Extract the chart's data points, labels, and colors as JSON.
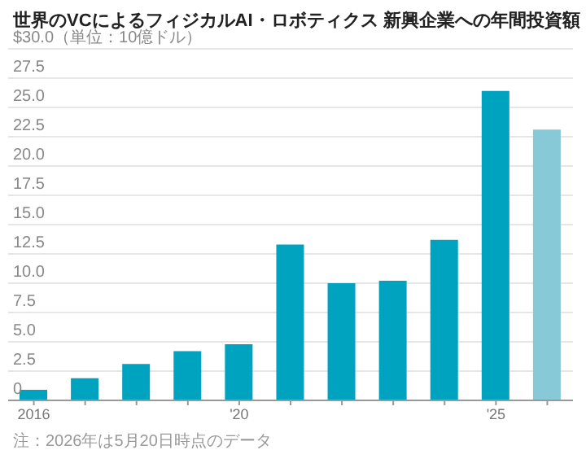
{
  "chart_data": {
    "type": "bar",
    "title": "世界のVCによるフィジカルAI・ロボティクス 新興企業への年間投資額",
    "categories": [
      "2016",
      null,
      null,
      null,
      "'20",
      null,
      null,
      null,
      null,
      "'25",
      null
    ],
    "values": [
      0.9,
      1.9,
      3.1,
      4.2,
      4.8,
      13.3,
      10.0,
      10.2,
      13.7,
      26.4,
      23.1
    ],
    "colors": [
      "#00a3bf",
      "#00a3bf",
      "#00a3bf",
      "#00a3bf",
      "#00a3bf",
      "#00a3bf",
      "#00a3bf",
      "#00a3bf",
      "#00a3bf",
      "#00a3bf",
      "#88c9d8"
    ],
    "ylim": [
      0,
      30
    ],
    "yticks": [
      {
        "value": 0,
        "label": "0"
      },
      {
        "value": 2.5,
        "label": "2.5"
      },
      {
        "value": 5,
        "label": "5.0"
      },
      {
        "value": 7.5,
        "label": "7.5"
      },
      {
        "value": 10,
        "label": "10.0"
      },
      {
        "value": 12.5,
        "label": "12.5"
      },
      {
        "value": 15,
        "label": "15.0"
      },
      {
        "value": 17.5,
        "label": "17.5"
      },
      {
        "value": 20,
        "label": "20.0"
      },
      {
        "value": 22.5,
        "label": "22.5"
      },
      {
        "value": 25,
        "label": "25.0"
      },
      {
        "value": 27.5,
        "label": "27.5"
      },
      {
        "value": 30,
        "label": "$30.0（単位：10億ドル）"
      }
    ],
    "grid": "y",
    "annotations": [
      "注：2026年は5月20日時点のデータ"
    ]
  }
}
